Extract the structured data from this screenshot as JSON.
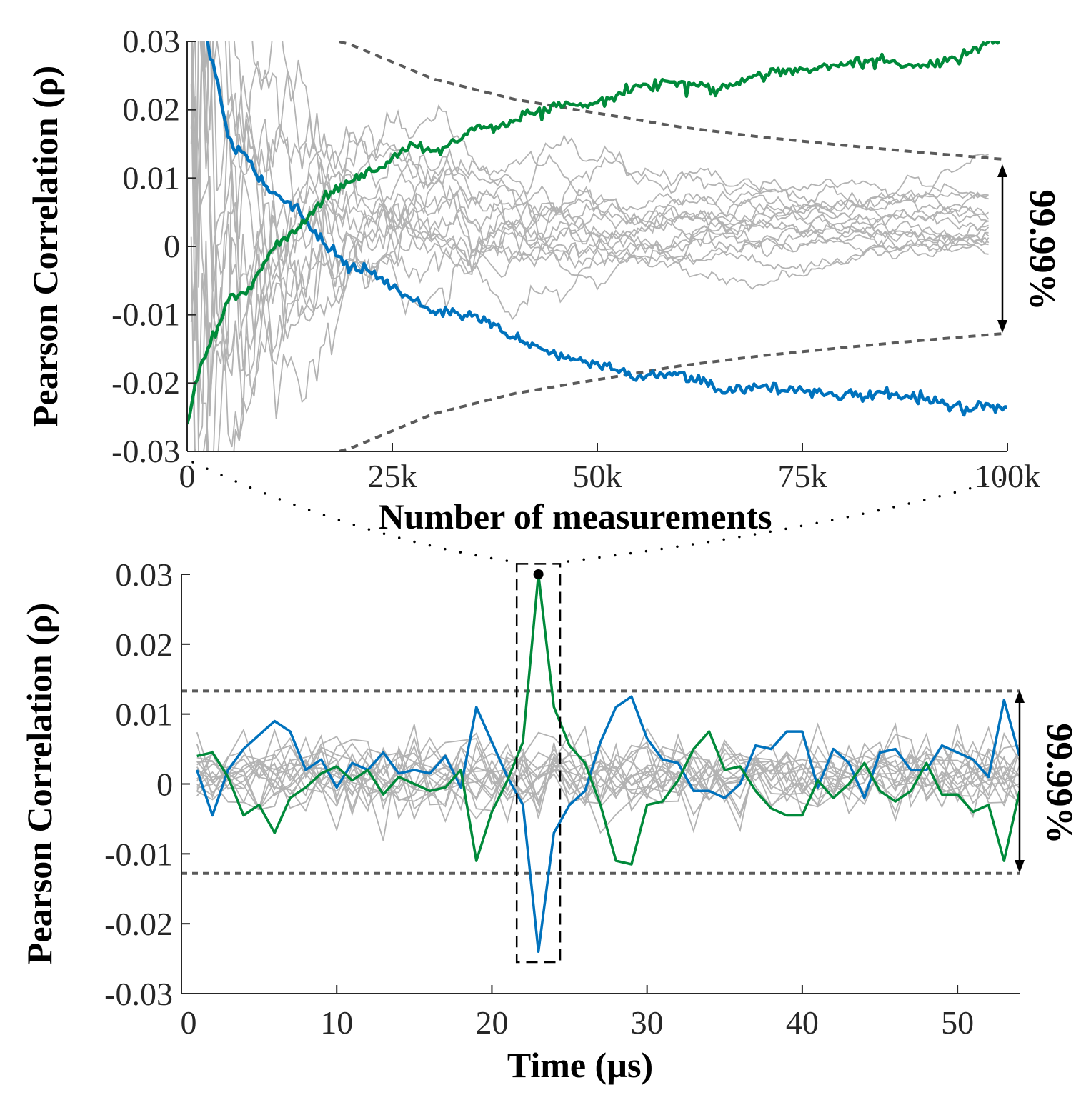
{
  "colors": {
    "candidate": "#b3b3b3",
    "blue_key": "#0072bd",
    "green_key": "#008a3a",
    "threshold": "#5a5a5a",
    "axis": "#262626"
  },
  "chart_data": [
    {
      "type": "line",
      "title": "",
      "xlabel": "Number of measurements",
      "ylabel": "Pearson Correlation (ρ)",
      "xlim": [
        0,
        100000
      ],
      "ylim": [
        -0.03,
        0.03
      ],
      "x_ticks": [
        0,
        25000,
        50000,
        75000,
        100000
      ],
      "x_tick_labels": [
        "0",
        "25k",
        "50k",
        "75k",
        "100k"
      ],
      "y_ticks": [
        0.03,
        0.02,
        0.01,
        0,
        -0.01,
        -0.02,
        -0.03
      ],
      "y_tick_labels": [
        "0.03",
        "0.02",
        "0.01",
        "0",
        "-0.01",
        "-0.02",
        "-0.03"
      ],
      "grid": false,
      "annotation": "99.99%",
      "threshold": {
        "style": "dashed",
        "x": [
          17000,
          20000,
          25000,
          30000,
          40000,
          50000,
          60000,
          70000,
          80000,
          90000,
          100000
        ],
        "upper": [
          0.0305,
          0.0295,
          0.027,
          0.0245,
          0.0215,
          0.0195,
          0.0175,
          0.016,
          0.0148,
          0.0137,
          0.0127
        ],
        "lower": [
          -0.0305,
          -0.0295,
          -0.027,
          -0.0245,
          -0.0215,
          -0.0195,
          -0.0175,
          -0.016,
          -0.0148,
          -0.0137,
          -0.0127
        ]
      },
      "highlight_series": [
        {
          "color_key": "blue_key",
          "x": [
            0,
            2500,
            5000,
            7500,
            10000,
            12500,
            15000,
            17500,
            20000,
            22500,
            25000,
            27500,
            30000,
            35000,
            40000,
            45000,
            50000,
            55000,
            60000,
            65000,
            70000,
            75000,
            80000,
            85000,
            90000,
            95000,
            100000
          ],
          "y": [
            0.052,
            0.03,
            0.016,
            0.0125,
            0.008,
            0.0065,
            0.0025,
            -0.0005,
            -0.003,
            -0.004,
            -0.006,
            -0.008,
            -0.0095,
            -0.01,
            -0.0135,
            -0.016,
            -0.017,
            -0.019,
            -0.0185,
            -0.021,
            -0.0205,
            -0.021,
            -0.022,
            -0.0215,
            -0.0225,
            -0.0235,
            -0.0235
          ]
        },
        {
          "color_key": "green_key",
          "x": [
            0,
            1000,
            2500,
            5000,
            7500,
            10000,
            12500,
            15000,
            17500,
            20000,
            22500,
            25000,
            27500,
            30000,
            35000,
            40000,
            45000,
            50000,
            55000,
            60000,
            65000,
            70000,
            75000,
            80000,
            85000,
            90000,
            95000,
            100000
          ],
          "y": [
            -0.026,
            -0.02,
            -0.015,
            -0.008,
            -0.006,
            -0.001,
            0.002,
            0.005,
            0.008,
            0.0095,
            0.011,
            0.013,
            0.015,
            0.014,
            0.017,
            0.0185,
            0.0205,
            0.021,
            0.0235,
            0.024,
            0.023,
            0.025,
            0.026,
            0.0265,
            0.027,
            0.0265,
            0.028,
            0.031
          ]
        }
      ]
    },
    {
      "type": "line",
      "title": "",
      "xlabel": "Time (µs)",
      "ylabel": "Pearson Correlation (ρ)",
      "xlim": [
        0,
        54
      ],
      "ylim": [
        -0.03,
        0.03
      ],
      "x_ticks": [
        0,
        10,
        20,
        30,
        40,
        50
      ],
      "x_tick_labels": [
        "0",
        "10",
        "20",
        "30",
        "40",
        "50"
      ],
      "y_ticks": [
        0.03,
        0.02,
        0.01,
        0,
        -0.01,
        -0.02,
        -0.03
      ],
      "y_tick_labels": [
        "0.03",
        "0.02",
        "0.01",
        "0",
        "-0.01",
        "-0.02",
        "-0.03"
      ],
      "grid": false,
      "annotation": "99.99%",
      "threshold": {
        "style": "dashed",
        "upper": 0.0133,
        "lower": -0.0128
      },
      "peak_marker": {
        "x": 23,
        "y": 0.03
      },
      "highlight_window": {
        "x0": 21.6,
        "x1": 24.4,
        "y0": -0.0255,
        "y1": 0.0315
      },
      "highlight_series": [
        {
          "color_key": "blue_key",
          "x": [
            1,
            2,
            3,
            4,
            5,
            6,
            7,
            8,
            9,
            10,
            11,
            12,
            13,
            14,
            15,
            16,
            17,
            18,
            19,
            20,
            21,
            22,
            23,
            24,
            25,
            26,
            27,
            28,
            29,
            30,
            31,
            32,
            33,
            34,
            35,
            36,
            37,
            38,
            39,
            40,
            41,
            42,
            43,
            44,
            45,
            46,
            47,
            48,
            49,
            50,
            51,
            52,
            53,
            54
          ],
          "y": [
            0.002,
            -0.0045,
            0.002,
            0.005,
            0.007,
            0.009,
            0.0075,
            0.002,
            0.0035,
            -0.0005,
            0.003,
            0.002,
            0.0045,
            0.0015,
            0.002,
            0.0015,
            0.004,
            -0.0005,
            0.011,
            0.006,
            0.001,
            -0.003,
            -0.024,
            -0.007,
            -0.003,
            -0.001,
            0.006,
            0.011,
            0.0125,
            0.0065,
            0.0035,
            0.003,
            -0.001,
            -0.001,
            -0.002,
            0.0,
            0.0055,
            0.005,
            0.0075,
            0.0075,
            -0.0005,
            0.005,
            0.003,
            -0.002,
            0.0045,
            0.005,
            0.002,
            0.002,
            0.0055,
            0.0045,
            0.0035,
            0.001,
            0.012,
            0.004
          ]
        },
        {
          "color_key": "green_key",
          "x": [
            1,
            2,
            3,
            4,
            5,
            6,
            7,
            8,
            9,
            10,
            11,
            12,
            13,
            14,
            15,
            16,
            17,
            18,
            19,
            20,
            21,
            22,
            23,
            24,
            25,
            26,
            27,
            28,
            29,
            30,
            31,
            32,
            33,
            34,
            35,
            36,
            37,
            38,
            39,
            40,
            41,
            42,
            43,
            44,
            45,
            46,
            47,
            48,
            49,
            50,
            51,
            52,
            53,
            54
          ],
          "y": [
            0.004,
            0.0045,
            0.001,
            -0.0045,
            -0.003,
            -0.007,
            -0.002,
            -0.0005,
            0.0015,
            0.0025,
            0.0005,
            0.002,
            -0.0015,
            0.001,
            0.0,
            -0.001,
            -0.0005,
            0.002,
            -0.011,
            -0.004,
            0.0005,
            0.006,
            0.03,
            0.011,
            0.0055,
            0.003,
            -0.003,
            -0.011,
            -0.0115,
            -0.003,
            -0.0025,
            0.0005,
            0.005,
            0.0075,
            0.002,
            0.0025,
            -0.001,
            -0.0035,
            -0.0045,
            -0.0045,
            0.0005,
            -0.002,
            0.0,
            0.003,
            -0.001,
            -0.0025,
            -0.001,
            0.003,
            -0.0015,
            -0.0015,
            -0.004,
            -0.003,
            -0.011,
            -0.001
          ]
        }
      ]
    }
  ]
}
